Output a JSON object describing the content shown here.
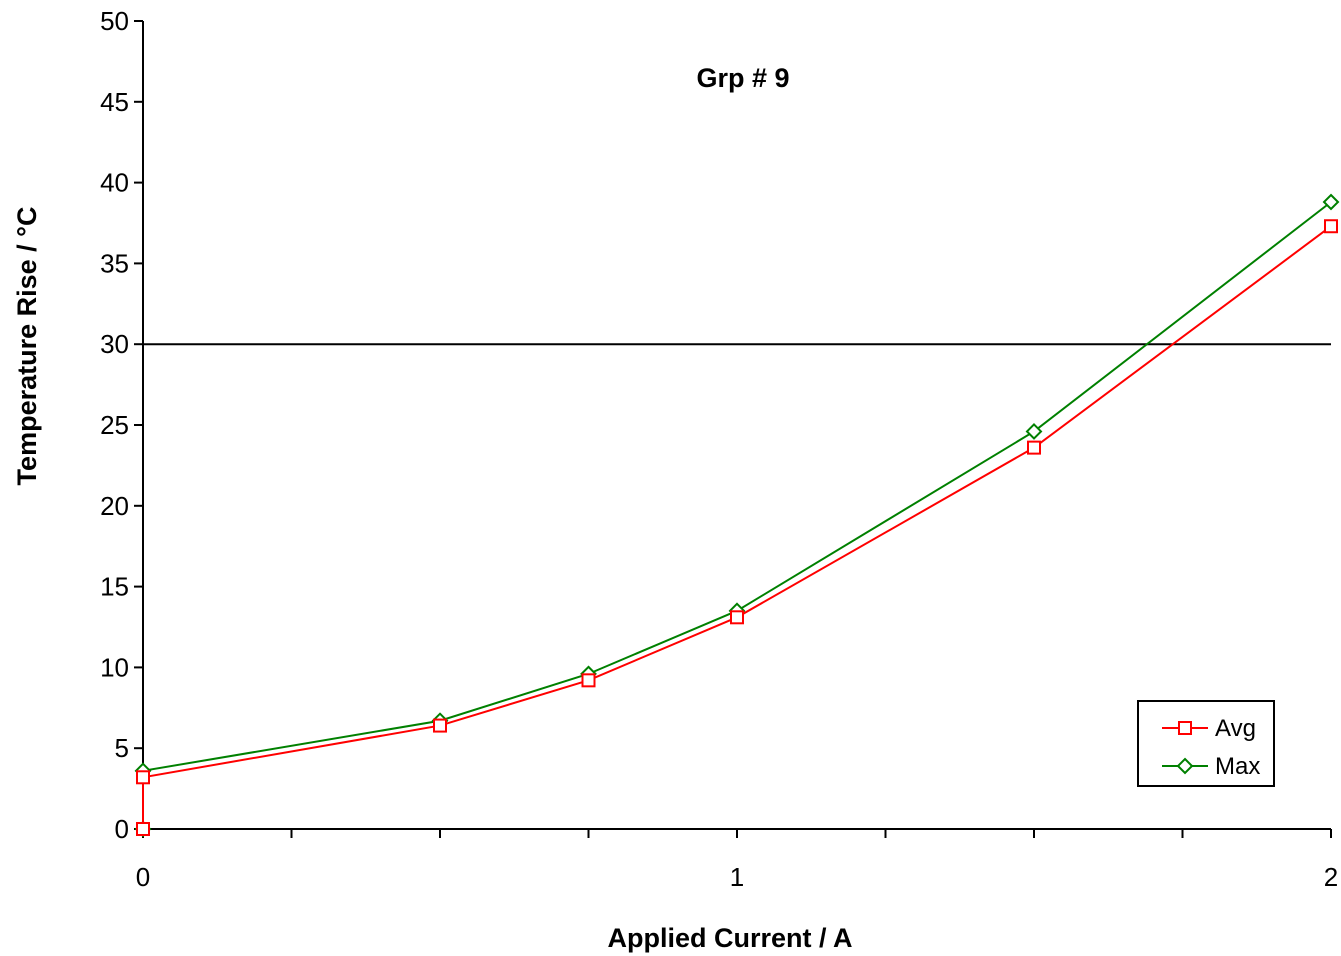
{
  "chart_data": {
    "type": "line",
    "title": "Grp # 9",
    "xlabel": "Applied Current / A",
    "ylabel": "Temperature Rise / °C",
    "xlim": [
      0,
      2
    ],
    "ylim": [
      0,
      50
    ],
    "x_ticks": [
      "0",
      "1",
      "2"
    ],
    "y_ticks": [
      "0",
      "5",
      "10",
      "15",
      "20",
      "25",
      "30",
      "35",
      "40",
      "45",
      "50"
    ],
    "grid": false,
    "reference_line": {
      "y": 30,
      "color": "#000000"
    },
    "legend": {
      "placement": "bottom-right"
    },
    "series": [
      {
        "name": "Avg",
        "color": "#ff0000",
        "marker": "square",
        "points": [
          {
            "x": 0,
            "y": 0
          },
          {
            "x": 0,
            "y": 3.2
          },
          {
            "x": 0.5,
            "y": 6.4
          },
          {
            "x": 0.75,
            "y": 9.2
          },
          {
            "x": 1.0,
            "y": 13.1
          },
          {
            "x": 1.5,
            "y": 23.6
          },
          {
            "x": 2.0,
            "y": 37.3
          }
        ]
      },
      {
        "name": "Max",
        "color": "#008000",
        "marker": "diamond",
        "points": [
          {
            "x": 0,
            "y": 0
          },
          {
            "x": 0,
            "y": 3.6
          },
          {
            "x": 0.5,
            "y": 6.7
          },
          {
            "x": 0.75,
            "y": 9.6
          },
          {
            "x": 1.0,
            "y": 13.5
          },
          {
            "x": 1.5,
            "y": 24.6
          },
          {
            "x": 2.0,
            "y": 38.8
          }
        ]
      }
    ]
  }
}
